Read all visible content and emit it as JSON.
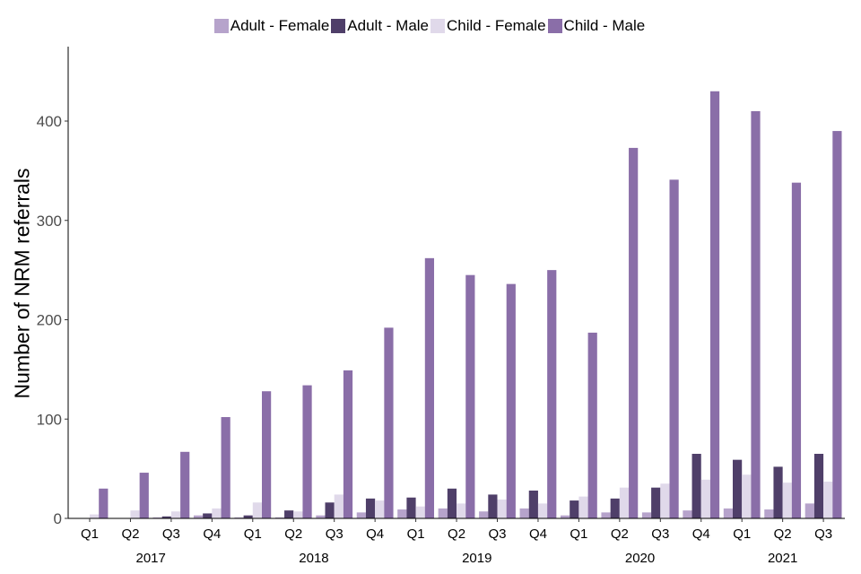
{
  "chart_data": {
    "type": "bar",
    "title": "",
    "xlabel": "",
    "ylabel": "Number of NRM referrals",
    "ylim": [
      0,
      475
    ],
    "yticks": [
      0,
      100,
      200,
      300,
      400
    ],
    "legend_position": "top",
    "grid": false,
    "categories": [
      "Q1",
      "Q2",
      "Q3",
      "Q4",
      "Q1",
      "Q2",
      "Q3",
      "Q4",
      "Q1",
      "Q2",
      "Q3",
      "Q4",
      "Q1",
      "Q2",
      "Q3",
      "Q4",
      "Q1",
      "Q2",
      "Q3"
    ],
    "years": [
      {
        "label": "2017",
        "start": 0,
        "end": 3
      },
      {
        "label": "2018",
        "start": 4,
        "end": 7
      },
      {
        "label": "2019",
        "start": 8,
        "end": 11
      },
      {
        "label": "2020",
        "start": 12,
        "end": 15
      },
      {
        "label": "2021",
        "start": 16,
        "end": 18
      }
    ],
    "series": [
      {
        "name": "Adult - Female",
        "color": "#b6a3cb",
        "values": [
          0,
          0,
          1,
          3,
          1,
          1,
          3,
          6,
          9,
          10,
          7,
          10,
          3,
          6,
          6,
          8,
          10,
          9,
          15
        ]
      },
      {
        "name": "Adult - Male",
        "color": "#4f3f69",
        "values": [
          0,
          0,
          2,
          5,
          3,
          8,
          16,
          20,
          21,
          30,
          24,
          28,
          18,
          20,
          31,
          65,
          59,
          52,
          65
        ]
      },
      {
        "name": "Child - Female",
        "color": "#e0d9ea",
        "values": [
          4,
          8,
          7,
          10,
          16,
          7,
          24,
          18,
          12,
          15,
          19,
          15,
          22,
          31,
          35,
          39,
          44,
          36,
          37
        ]
      },
      {
        "name": "Child - Male",
        "color": "#8a6ea8",
        "values": [
          30,
          46,
          67,
          102,
          128,
          134,
          149,
          192,
          262,
          245,
          236,
          250,
          187,
          373,
          341,
          430,
          410,
          338,
          390
        ]
      }
    ]
  }
}
